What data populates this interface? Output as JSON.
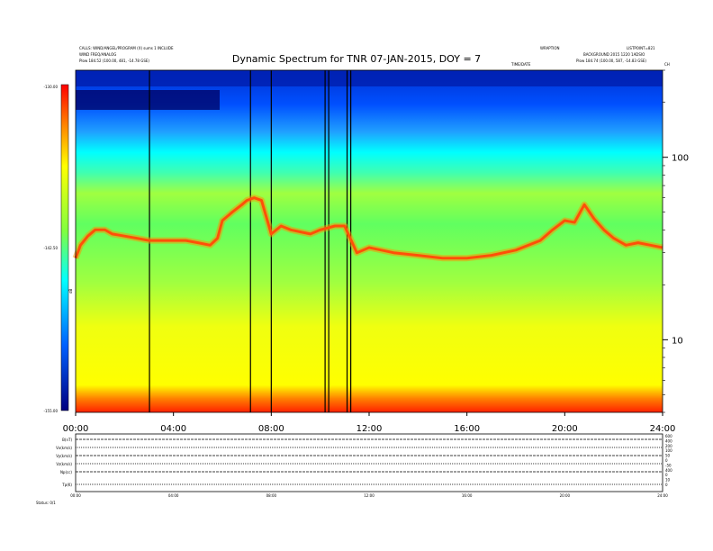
{
  "chart_data": {
    "type": "heatmap",
    "title": "Dynamic Spectrum for TNR 07-JAN-2015, DOY = 7",
    "header_left": [
      "CALLS: WIND/ANGEL/PROGRAM (X) sums 1 INCLUDE",
      "WIND FREQ/ANALOG",
      "Plow  184.52 (100.00, 481, -14.78 GSE)"
    ],
    "header_right": [
      "WRAPTION",
      "LISTPOINT=821",
      "BACKGROUND 2015 1220 1ADSIO",
      "Plow  184.74 (100.00, 587, -14.83 GSE)"
    ],
    "header_center_small": "TIME/DATE",
    "corner_tag": "CH",
    "colorbar": {
      "ticks": [
        "-130.00",
        "-142.50",
        "-155.00"
      ],
      "range": [
        -155.0,
        -130.0
      ],
      "label": "dB"
    },
    "x_ticks": [
      "00:00",
      "04:00",
      "08:00",
      "12:00",
      "16:00",
      "20:00",
      "24:00"
    ],
    "x_range_hours": [
      0,
      24
    ],
    "y_scale": "log",
    "y_range": [
      4,
      300
    ],
    "y_ticks": [
      {
        "value": 100,
        "label": "100"
      },
      {
        "value": 10,
        "label": "10"
      }
    ],
    "data_gap_hours": [
      3.02,
      7.15,
      8.0,
      10.2,
      10.35,
      11.1,
      11.25
    ],
    "plasma_line_hours": [
      0,
      0.2,
      0.5,
      0.8,
      1.2,
      1.5,
      2.0,
      2.5,
      3.0,
      3.5,
      4.0,
      4.5,
      5.0,
      5.5,
      5.8,
      6.0,
      6.4,
      6.8,
      7.0,
      7.3,
      7.6,
      8.0,
      8.4,
      8.8,
      9.2,
      9.6,
      10.0,
      10.6,
      11.0,
      11.5,
      12.0,
      12.5,
      13.0,
      14.0,
      15.0,
      16.0,
      17.0,
      18.0,
      19.0,
      19.5,
      20.0,
      20.4,
      20.8,
      21.2,
      21.6,
      22.0,
      22.5,
      23.0,
      23.5,
      24.0
    ],
    "plasma_line_khz": [
      28,
      33,
      37,
      40,
      40,
      38,
      37,
      36,
      35,
      35,
      35,
      35,
      34,
      33,
      36,
      45,
      50,
      55,
      58,
      60,
      58,
      38,
      42,
      40,
      39,
      38,
      40,
      42,
      42,
      30,
      32,
      31,
      30,
      29,
      28,
      28,
      29,
      31,
      35,
      40,
      45,
      44,
      55,
      46,
      40,
      36,
      33,
      34,
      33,
      32
    ]
  },
  "lower_panel": {
    "row_labels": [
      "B(nT)",
      "Vx(km/s)",
      "Vy(km/s)",
      "Vz(km/s)",
      "Np(cc)",
      "Tp(K)"
    ],
    "right_labels": [
      "600",
      "400",
      "200",
      "100",
      "50",
      "0",
      "-50",
      "400",
      "0",
      "10",
      "0"
    ],
    "x_ticks": [
      "00:00",
      "04:00",
      "08:00",
      "12:00",
      "16:00",
      "20:00",
      "24:00"
    ],
    "footer": "Status: 0/1"
  }
}
